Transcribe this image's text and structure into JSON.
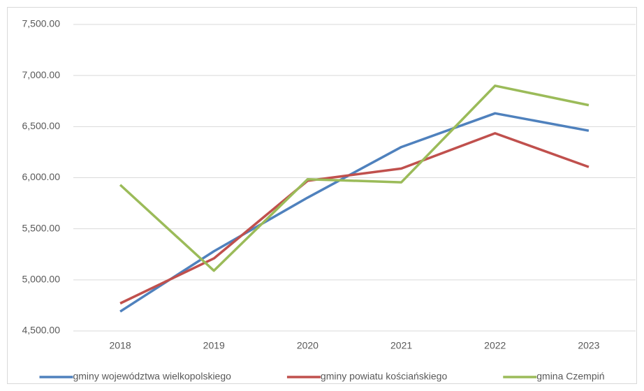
{
  "chart_data": {
    "type": "line",
    "categories": [
      "2018",
      "2019",
      "2020",
      "2021",
      "2022",
      "2023"
    ],
    "series": [
      {
        "name": "gminy województwa wielkopolskiego",
        "color": "#4f81bd",
        "values": [
          4690,
          5280,
          5805,
          6300,
          6630,
          6460
        ]
      },
      {
        "name": "gminy powiatu kościańskiego",
        "color": "#c0504d",
        "values": [
          4770,
          5210,
          5970,
          6090,
          6435,
          6105
        ]
      },
      {
        "name": "gmina Czempiń",
        "color": "#9bbb59",
        "values": [
          5930,
          5090,
          5985,
          5955,
          6900,
          6710
        ]
      }
    ],
    "ylim": [
      4500,
      7500
    ],
    "yticks": [
      {
        "value": 4500,
        "label": "4,500.00"
      },
      {
        "value": 5000,
        "label": "5,000.00"
      },
      {
        "value": 5500,
        "label": "5,500.00"
      },
      {
        "value": 6000,
        "label": "6,000.00"
      },
      {
        "value": 6500,
        "label": "6,500.00"
      },
      {
        "value": 7000,
        "label": "7,000.00"
      },
      {
        "value": 7500,
        "label": "7,500.00"
      }
    ],
    "grid": true,
    "legend": "bottom"
  }
}
